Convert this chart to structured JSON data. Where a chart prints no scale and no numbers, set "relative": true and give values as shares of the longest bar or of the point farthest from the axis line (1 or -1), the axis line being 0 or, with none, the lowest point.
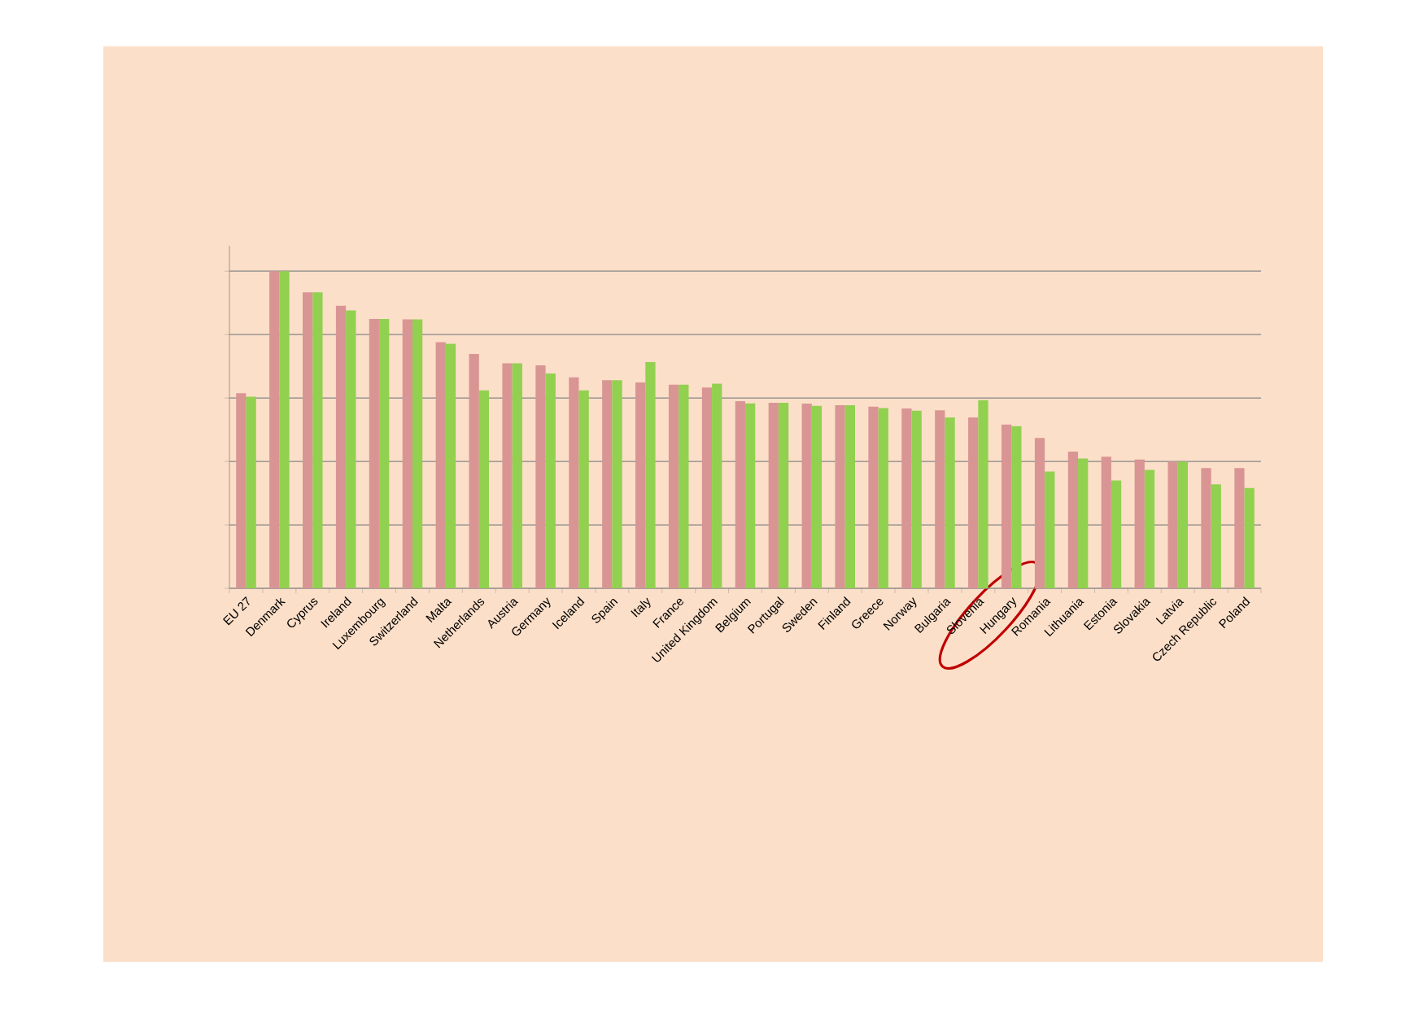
{
  "chart_data": {
    "type": "bar",
    "relative": true,
    "grid": "y",
    "categories": [
      "EU 27",
      "Denmark",
      "Cyprus",
      "Ireland",
      "Luxembourg",
      "Switzerland",
      "Malta",
      "Netherlands",
      "Austria",
      "Germany",
      "Iceland",
      "Spain",
      "Italy",
      "France",
      "United Kingdom",
      "Belgium",
      "Portugal",
      "Sweden",
      "Finland",
      "Greece",
      "Norway",
      "Bulgaria",
      "Slovenia",
      "Hungary",
      "Romania",
      "Lithuania",
      "Estonia",
      "Slovakia",
      "Latvia",
      "Czech Republic",
      "Poland"
    ],
    "series": [
      {
        "color": "#d99594",
        "values": [
          0.615,
          1,
          0.933,
          0.891,
          0.849,
          0.848,
          0.776,
          0.739,
          0.709,
          0.703,
          0.665,
          0.656,
          0.649,
          0.642,
          0.633,
          0.59,
          0.585,
          0.582,
          0.577,
          0.573,
          0.567,
          0.561,
          0.539,
          0.516,
          0.474,
          0.431,
          0.415,
          0.406,
          0.399,
          0.379,
          0.379
        ]
      },
      {
        "color": "#92d050",
        "values": [
          0.604,
          1,
          0.933,
          0.876,
          0.849,
          0.848,
          0.771,
          0.624,
          0.709,
          0.677,
          0.624,
          0.656,
          0.713,
          0.642,
          0.645,
          0.583,
          0.585,
          0.575,
          0.577,
          0.568,
          0.56,
          0.539,
          0.593,
          0.511,
          0.368,
          0.409,
          0.34,
          0.373,
          0.399,
          0.328,
          0.316
        ]
      }
    ]
  }
}
